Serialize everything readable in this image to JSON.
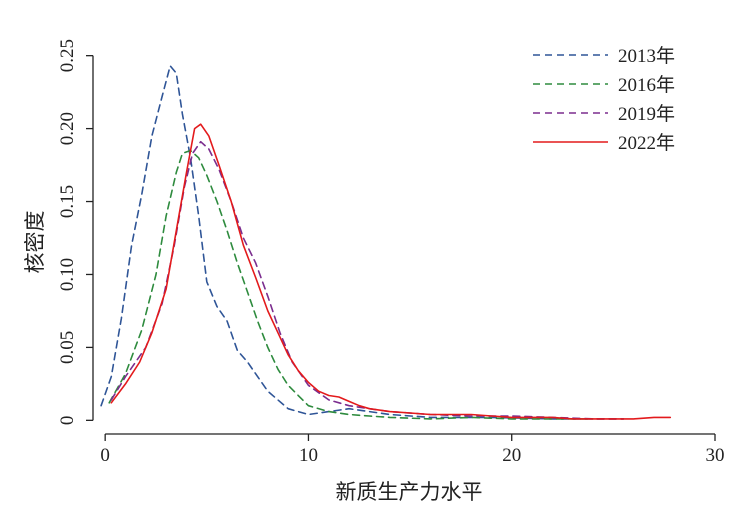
{
  "chart_data": {
    "type": "line",
    "title": "",
    "xlabel": "新质生产力水平",
    "ylabel": "核密度",
    "xlim": [
      -0.5,
      30
    ],
    "ylim": [
      -0.008,
      0.258
    ],
    "xticks": [
      0,
      10,
      20,
      30
    ],
    "yticks": [
      0,
      0.05,
      0.1,
      0.15,
      0.2,
      0.25
    ],
    "ytick_labels": [
      "0",
      "0.05",
      "0.10",
      "0.15",
      "0.20",
      "0.25"
    ],
    "grid": false,
    "legend_position": "top-right",
    "series": [
      {
        "name": "2013年",
        "color": "#2f5597",
        "dash": "dashed",
        "points": [
          [
            -0.2,
            0.01
          ],
          [
            0.3,
            0.03
          ],
          [
            0.8,
            0.07
          ],
          [
            1.3,
            0.12
          ],
          [
            1.8,
            0.155
          ],
          [
            2.3,
            0.195
          ],
          [
            2.8,
            0.222
          ],
          [
            3.2,
            0.243
          ],
          [
            3.5,
            0.238
          ],
          [
            3.8,
            0.21
          ],
          [
            4.2,
            0.18
          ],
          [
            4.6,
            0.14
          ],
          [
            5.0,
            0.095
          ],
          [
            5.5,
            0.078
          ],
          [
            6.0,
            0.068
          ],
          [
            6.5,
            0.048
          ],
          [
            7.0,
            0.04
          ],
          [
            7.5,
            0.03
          ],
          [
            8.0,
            0.02
          ],
          [
            9.0,
            0.008
          ],
          [
            10.0,
            0.004
          ],
          [
            11.0,
            0.006
          ],
          [
            12.0,
            0.008
          ],
          [
            13.0,
            0.006
          ],
          [
            14.0,
            0.004
          ],
          [
            16.0,
            0.002
          ],
          [
            19.0,
            0.002
          ],
          [
            22.0,
            0.001
          ],
          [
            25.5,
            0.001
          ]
        ]
      },
      {
        "name": "2016年",
        "color": "#2e8b3e",
        "dash": "dashed",
        "points": [
          [
            0.2,
            0.012
          ],
          [
            1.0,
            0.032
          ],
          [
            1.8,
            0.062
          ],
          [
            2.5,
            0.1
          ],
          [
            3.0,
            0.14
          ],
          [
            3.5,
            0.17
          ],
          [
            3.8,
            0.183
          ],
          [
            4.2,
            0.185
          ],
          [
            4.6,
            0.18
          ],
          [
            5.0,
            0.168
          ],
          [
            5.5,
            0.15
          ],
          [
            6.0,
            0.13
          ],
          [
            6.5,
            0.108
          ],
          [
            7.0,
            0.088
          ],
          [
            7.5,
            0.068
          ],
          [
            8.0,
            0.05
          ],
          [
            8.5,
            0.035
          ],
          [
            9.0,
            0.024
          ],
          [
            10.0,
            0.01
          ],
          [
            11.0,
            0.006
          ],
          [
            12.0,
            0.004
          ],
          [
            13.0,
            0.003
          ],
          [
            14.0,
            0.002
          ],
          [
            16.0,
            0.001
          ],
          [
            18.0,
            0.002
          ],
          [
            20.0,
            0.001
          ],
          [
            24.0,
            0.001
          ]
        ]
      },
      {
        "name": "2019年",
        "color": "#7b2d8e",
        "dash": "dashed",
        "points": [
          [
            0.3,
            0.014
          ],
          [
            1.0,
            0.03
          ],
          [
            2.0,
            0.05
          ],
          [
            2.8,
            0.08
          ],
          [
            3.4,
            0.12
          ],
          [
            3.9,
            0.16
          ],
          [
            4.3,
            0.183
          ],
          [
            4.7,
            0.191
          ],
          [
            5.1,
            0.186
          ],
          [
            5.6,
            0.172
          ],
          [
            6.2,
            0.15
          ],
          [
            6.8,
            0.125
          ],
          [
            7.4,
            0.108
          ],
          [
            8.0,
            0.085
          ],
          [
            8.6,
            0.06
          ],
          [
            9.2,
            0.04
          ],
          [
            10.0,
            0.024
          ],
          [
            11.0,
            0.014
          ],
          [
            12.0,
            0.01
          ],
          [
            13.0,
            0.008
          ],
          [
            14.0,
            0.006
          ],
          [
            16.0,
            0.004
          ],
          [
            18.0,
            0.003
          ],
          [
            20.0,
            0.003
          ],
          [
            22.0,
            0.002
          ],
          [
            24.0,
            0.001
          ],
          [
            25.5,
            0.001
          ]
        ]
      },
      {
        "name": "2022年",
        "color": "#e31a1c",
        "dash": "solid",
        "points": [
          [
            0.3,
            0.012
          ],
          [
            1.0,
            0.025
          ],
          [
            1.7,
            0.04
          ],
          [
            2.3,
            0.06
          ],
          [
            3.0,
            0.09
          ],
          [
            3.5,
            0.13
          ],
          [
            4.0,
            0.17
          ],
          [
            4.4,
            0.2
          ],
          [
            4.7,
            0.203
          ],
          [
            5.1,
            0.195
          ],
          [
            5.6,
            0.175
          ],
          [
            6.2,
            0.15
          ],
          [
            6.8,
            0.12
          ],
          [
            7.4,
            0.098
          ],
          [
            8.0,
            0.075
          ],
          [
            8.5,
            0.06
          ],
          [
            9.0,
            0.045
          ],
          [
            9.5,
            0.034
          ],
          [
            10.0,
            0.026
          ],
          [
            10.5,
            0.02
          ],
          [
            11.0,
            0.017
          ],
          [
            11.5,
            0.016
          ],
          [
            12.0,
            0.013
          ],
          [
            12.5,
            0.01
          ],
          [
            13.0,
            0.008
          ],
          [
            14.0,
            0.006
          ],
          [
            15.0,
            0.005
          ],
          [
            16.0,
            0.004
          ],
          [
            17.0,
            0.004
          ],
          [
            18.0,
            0.004
          ],
          [
            19.0,
            0.003
          ],
          [
            20.0,
            0.002
          ],
          [
            21.0,
            0.002
          ],
          [
            22.0,
            0.002
          ],
          [
            23.0,
            0.001
          ],
          [
            24.0,
            0.001
          ],
          [
            25.0,
            0.001
          ],
          [
            26.0,
            0.001
          ],
          [
            27.0,
            0.002
          ],
          [
            27.8,
            0.002
          ]
        ]
      }
    ]
  }
}
